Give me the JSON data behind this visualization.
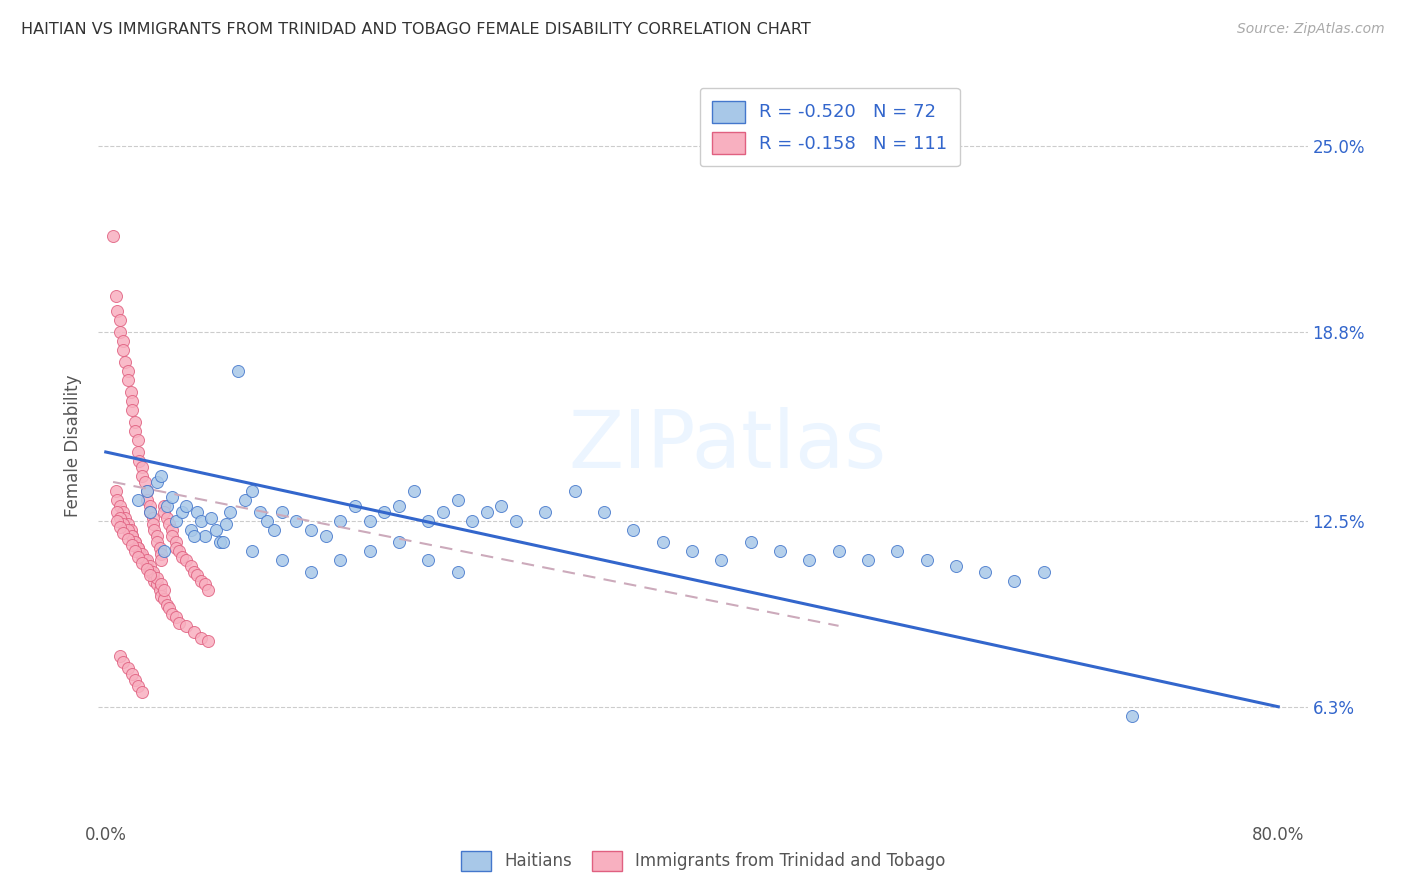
{
  "title": "HAITIAN VS IMMIGRANTS FROM TRINIDAD AND TOBAGO FEMALE DISABILITY CORRELATION CHART",
  "source": "Source: ZipAtlas.com",
  "ylabel": "Female Disability",
  "y_tick_labels": [
    "6.3%",
    "12.5%",
    "18.8%",
    "25.0%"
  ],
  "y_tick_values": [
    0.063,
    0.125,
    0.188,
    0.25
  ],
  "xlim": [
    -0.005,
    0.82
  ],
  "ylim": [
    0.025,
    0.275
  ],
  "legend_label1_r": "-0.520",
  "legend_label1_n": "72",
  "legend_label2_r": "-0.158",
  "legend_label2_n": "111",
  "color_haitian": "#a8c8e8",
  "color_haitian_edge": "#4477cc",
  "color_trinidad": "#f8b0c0",
  "color_trinidad_edge": "#e06080",
  "color_line_haitian": "#3366cc",
  "color_line_trinidad": "#ccaabb",
  "background_color": "#ffffff",
  "watermark": "ZIPatlas",
  "haitian_x": [
    0.022,
    0.028,
    0.03,
    0.035,
    0.038,
    0.042,
    0.045,
    0.048,
    0.052,
    0.055,
    0.058,
    0.062,
    0.065,
    0.068,
    0.072,
    0.075,
    0.078,
    0.082,
    0.085,
    0.09,
    0.095,
    0.1,
    0.105,
    0.11,
    0.115,
    0.12,
    0.13,
    0.14,
    0.15,
    0.16,
    0.17,
    0.18,
    0.19,
    0.2,
    0.21,
    0.22,
    0.23,
    0.24,
    0.25,
    0.26,
    0.27,
    0.28,
    0.3,
    0.32,
    0.34,
    0.36,
    0.38,
    0.4,
    0.42,
    0.44,
    0.46,
    0.48,
    0.5,
    0.52,
    0.54,
    0.56,
    0.58,
    0.6,
    0.62,
    0.64,
    0.04,
    0.06,
    0.08,
    0.1,
    0.12,
    0.14,
    0.16,
    0.18,
    0.2,
    0.22,
    0.24,
    0.7
  ],
  "haitian_y": [
    0.132,
    0.135,
    0.128,
    0.138,
    0.14,
    0.13,
    0.133,
    0.125,
    0.128,
    0.13,
    0.122,
    0.128,
    0.125,
    0.12,
    0.126,
    0.122,
    0.118,
    0.124,
    0.128,
    0.175,
    0.132,
    0.135,
    0.128,
    0.125,
    0.122,
    0.128,
    0.125,
    0.122,
    0.12,
    0.125,
    0.13,
    0.125,
    0.128,
    0.13,
    0.135,
    0.125,
    0.128,
    0.132,
    0.125,
    0.128,
    0.13,
    0.125,
    0.128,
    0.135,
    0.128,
    0.122,
    0.118,
    0.115,
    0.112,
    0.118,
    0.115,
    0.112,
    0.115,
    0.112,
    0.115,
    0.112,
    0.11,
    0.108,
    0.105,
    0.108,
    0.115,
    0.12,
    0.118,
    0.115,
    0.112,
    0.108,
    0.112,
    0.115,
    0.118,
    0.112,
    0.108,
    0.06
  ],
  "trinidad_x": [
    0.005,
    0.007,
    0.008,
    0.01,
    0.01,
    0.012,
    0.012,
    0.013,
    0.015,
    0.015,
    0.017,
    0.018,
    0.018,
    0.02,
    0.02,
    0.022,
    0.022,
    0.023,
    0.025,
    0.025,
    0.027,
    0.028,
    0.028,
    0.03,
    0.03,
    0.032,
    0.032,
    0.033,
    0.035,
    0.035,
    0.037,
    0.038,
    0.038,
    0.04,
    0.04,
    0.042,
    0.043,
    0.045,
    0.045,
    0.048,
    0.048,
    0.05,
    0.052,
    0.055,
    0.058,
    0.06,
    0.062,
    0.065,
    0.068,
    0.07,
    0.007,
    0.008,
    0.01,
    0.012,
    0.013,
    0.015,
    0.017,
    0.018,
    0.02,
    0.022,
    0.023,
    0.025,
    0.027,
    0.028,
    0.03,
    0.032,
    0.033,
    0.035,
    0.037,
    0.038,
    0.04,
    0.042,
    0.043,
    0.045,
    0.048,
    0.05,
    0.055,
    0.06,
    0.065,
    0.07,
    0.008,
    0.01,
    0.012,
    0.015,
    0.018,
    0.02,
    0.022,
    0.025,
    0.028,
    0.03,
    0.032,
    0.035,
    0.038,
    0.04,
    0.008,
    0.01,
    0.012,
    0.015,
    0.018,
    0.02,
    0.022,
    0.025,
    0.028,
    0.03,
    0.01,
    0.012,
    0.015,
    0.018,
    0.02,
    0.022,
    0.025
  ],
  "trinidad_y": [
    0.22,
    0.2,
    0.195,
    0.192,
    0.188,
    0.185,
    0.182,
    0.178,
    0.175,
    0.172,
    0.168,
    0.165,
    0.162,
    0.158,
    0.155,
    0.152,
    0.148,
    0.145,
    0.143,
    0.14,
    0.138,
    0.135,
    0.132,
    0.13,
    0.128,
    0.126,
    0.124,
    0.122,
    0.12,
    0.118,
    0.116,
    0.114,
    0.112,
    0.13,
    0.128,
    0.126,
    0.124,
    0.122,
    0.12,
    0.118,
    0.116,
    0.115,
    0.113,
    0.112,
    0.11,
    0.108,
    0.107,
    0.105,
    0.104,
    0.102,
    0.135,
    0.132,
    0.13,
    0.128,
    0.126,
    0.124,
    0.122,
    0.12,
    0.118,
    0.116,
    0.115,
    0.113,
    0.112,
    0.11,
    0.108,
    0.107,
    0.105,
    0.104,
    0.102,
    0.1,
    0.099,
    0.097,
    0.096,
    0.094,
    0.093,
    0.091,
    0.09,
    0.088,
    0.086,
    0.085,
    0.128,
    0.126,
    0.124,
    0.122,
    0.12,
    0.118,
    0.116,
    0.114,
    0.112,
    0.11,
    0.108,
    0.106,
    0.104,
    0.102,
    0.125,
    0.123,
    0.121,
    0.119,
    0.117,
    0.115,
    0.113,
    0.111,
    0.109,
    0.107,
    0.08,
    0.078,
    0.076,
    0.074,
    0.072,
    0.07,
    0.068
  ]
}
